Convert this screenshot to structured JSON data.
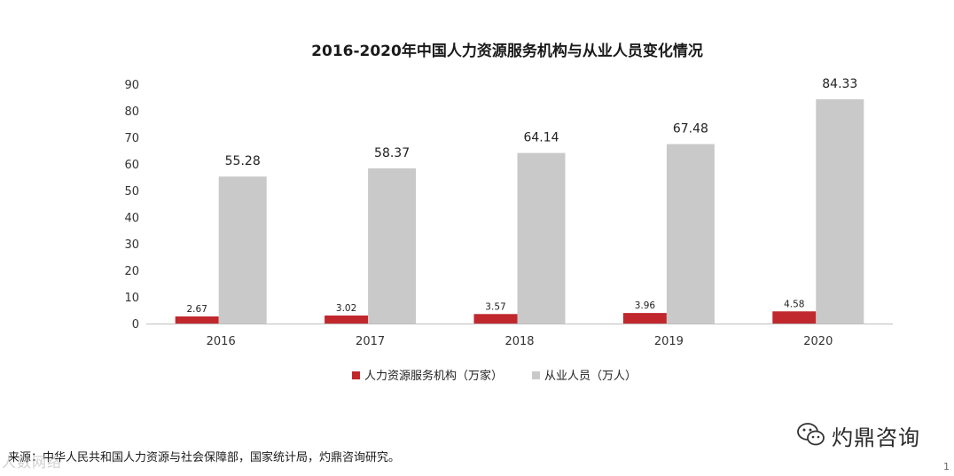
{
  "chart_data": {
    "type": "bar",
    "title": "2016-2020年中国人力资源服务机构与从业人员变化情况",
    "categories": [
      "2016",
      "2017",
      "2018",
      "2019",
      "2020"
    ],
    "series": [
      {
        "name": "人力资源服务机构（万家）",
        "values": [
          2.67,
          3.02,
          3.57,
          3.96,
          4.58
        ],
        "labels": [
          "2.67",
          "3.02",
          "3.57",
          "3.96",
          "4.58"
        ],
        "color": "#c0282d"
      },
      {
        "name": "从业人员（万人）",
        "values": [
          55.28,
          58.37,
          64.14,
          67.48,
          84.33
        ],
        "labels": [
          "55.28",
          "58.37",
          "64.14",
          "67.48",
          "84.33"
        ],
        "color": "#c9c9c9"
      }
    ],
    "ylim": [
      0,
      90
    ],
    "yticks": [
      "0",
      "10",
      "20",
      "30",
      "40",
      "50",
      "60",
      "70",
      "80",
      "90"
    ],
    "grid": false,
    "legend_position": "bottom"
  },
  "footer": {
    "source": "来源：中华人民共和国人力资源与社会保障部，国家统计局，灼鼎咨询研究。",
    "watermark": "人数网络"
  },
  "brand": {
    "name": "灼鼎咨询",
    "icon": "wechat-icon"
  },
  "page_number": "1"
}
